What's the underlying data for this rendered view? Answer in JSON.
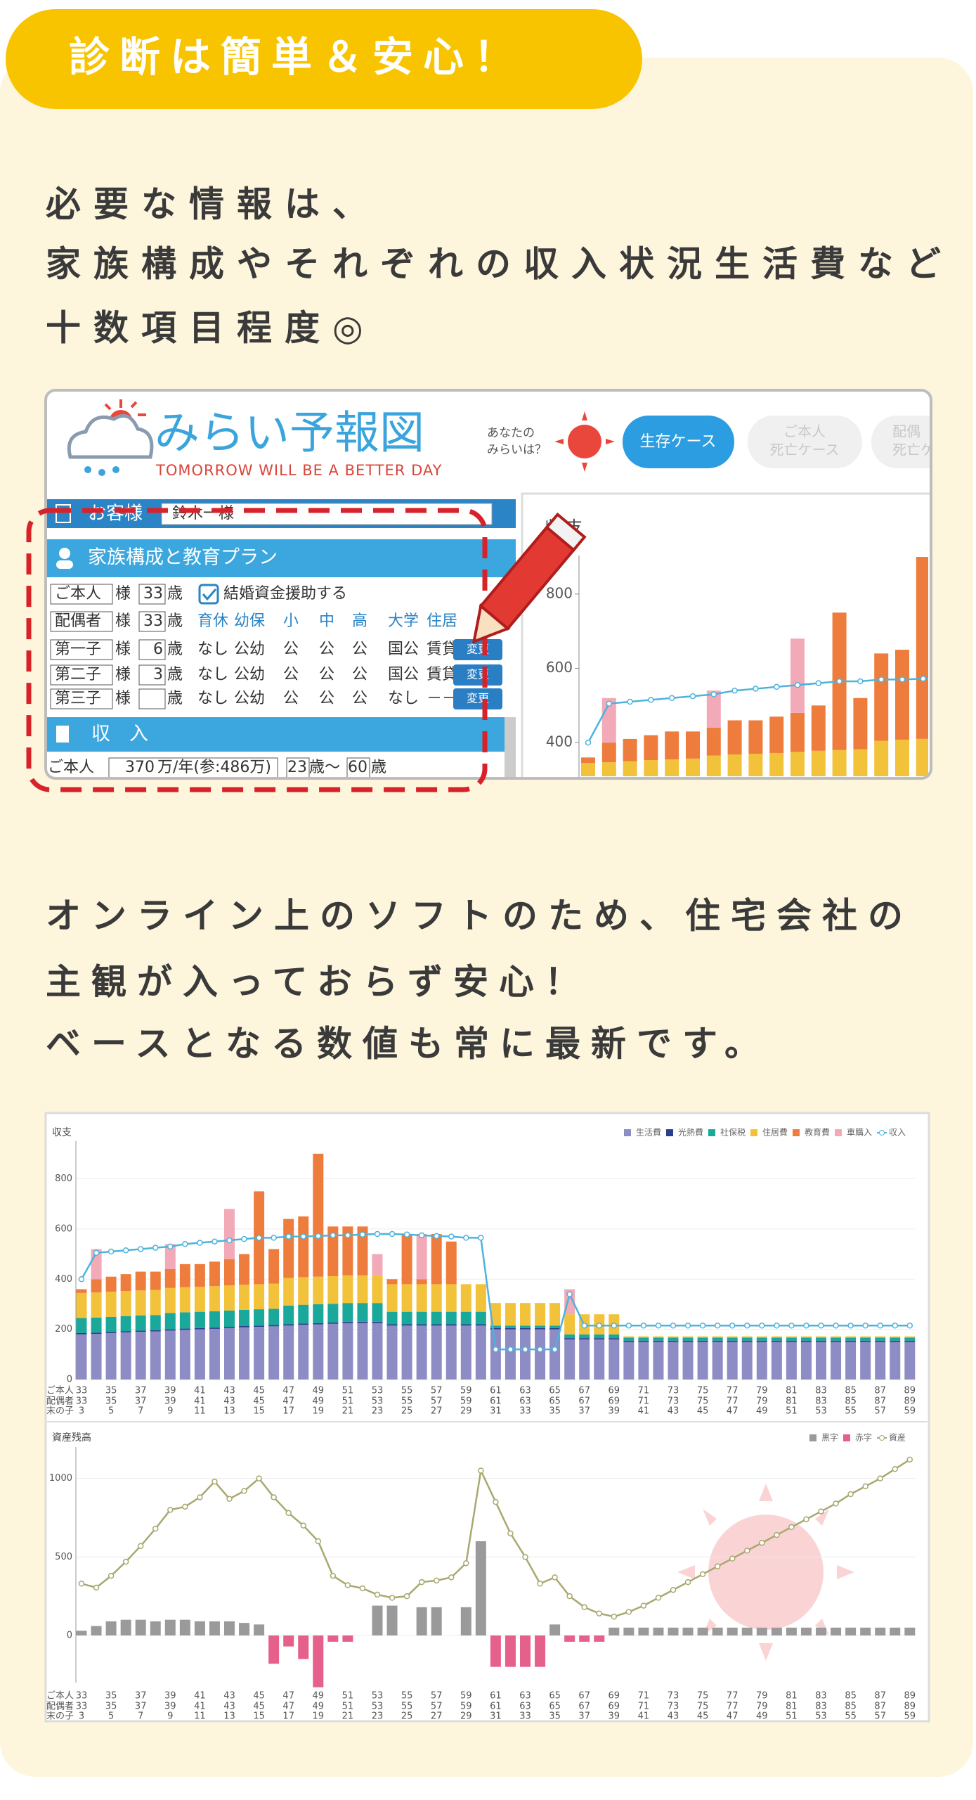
{
  "header": {
    "title": "診断は簡単＆安心！"
  },
  "paragraphs": [
    [
      "必要な情報は、",
      "家族構成やそれぞれの収入状況生活費など",
      "十数項目程度◎"
    ],
    [
      "オンライン上のソフトのため、住宅会社の",
      "主観が入っておらず安心！",
      "ベースとなる数値も常に最新です。"
    ]
  ],
  "app": {
    "logo": "みらい予報図",
    "tagline": "TOMORROW WILL BE A BETTER DAY",
    "prompt": [
      "あなたの",
      "みらいは？"
    ],
    "tabs": [
      [
        "生存ケース"
      ],
      [
        "ご本人",
        "死亡ケース"
      ],
      [
        "配偶",
        "死亡ケ"
      ]
    ],
    "customer_label": "お客様",
    "customer_name": "鈴木一様",
    "family_header": "家族構成と教育プラン",
    "honorific": "様",
    "age_unit": "歳",
    "marriage_support": "結婚資金援助する",
    "stage_headings": [
      "育休",
      "幼保",
      "小",
      "中",
      "高",
      "大学",
      "住居"
    ],
    "family": [
      {
        "name": "ご本人",
        "age": 33
      },
      {
        "name": "配偶者",
        "age": 33
      },
      {
        "name": "第一子",
        "age": 6,
        "plan": [
          "なし",
          "公幼",
          "公",
          "公",
          "公",
          "国公",
          "賃貸"
        ]
      },
      {
        "name": "第二子",
        "age": 3,
        "plan": [
          "なし",
          "公幼",
          "公",
          "公",
          "公",
          "国公",
          "賃貸"
        ]
      },
      {
        "name": "第三子",
        "age": null,
        "plan": [
          "なし",
          "公幼",
          "公",
          "公",
          "公",
          "なし",
          "－－"
        ]
      }
    ],
    "change_button": "変更",
    "income_header": "収　入",
    "income_row": {
      "name": "ご本人",
      "amount": 370,
      "unit": "万/年(参:486万)",
      "from": 23,
      "range_sep": "歳〜",
      "to": 60,
      "age_unit": "歳"
    }
  },
  "chart_data": [
    {
      "type": "bar",
      "stacked": true,
      "title": "収支",
      "ylim": [
        300,
        900
      ],
      "yticks": [
        400,
        600,
        800
      ]
    },
    {
      "type": "bar",
      "stacked": true,
      "title": "収支",
      "ylim": [
        0,
        950
      ],
      "yticks": [
        0,
        200,
        400,
        600,
        800
      ],
      "grid": true,
      "age_rows": [
        {
          "name": "ご本人",
          "labels": [
            33,
            35,
            37,
            39,
            41,
            43,
            45,
            47,
            49,
            51,
            53,
            55,
            57,
            59,
            61,
            63,
            65,
            67,
            69,
            71,
            73,
            75,
            77,
            79,
            81,
            83,
            85,
            87,
            89
          ]
        },
        {
          "name": "配偶者",
          "labels": [
            33,
            35,
            37,
            39,
            41,
            43,
            45,
            47,
            49,
            51,
            53,
            55,
            57,
            59,
            61,
            63,
            65,
            67,
            69,
            71,
            73,
            75,
            77,
            79,
            81,
            83,
            85,
            87,
            89
          ]
        },
        {
          "name": "末の子",
          "labels": [
            3,
            5,
            7,
            9,
            11,
            13,
            15,
            17,
            19,
            21,
            23,
            25,
            27,
            29,
            31,
            33,
            35,
            37,
            39,
            41,
            43,
            45,
            47,
            49,
            51,
            53,
            55,
            57,
            59
          ]
        }
      ],
      "series": [
        {
          "name": "生活費",
          "color": "#8e8cc4",
          "values": [
            180,
            182,
            185,
            188,
            190,
            192,
            195,
            198,
            200,
            202,
            205,
            208,
            210,
            212,
            215,
            218,
            220,
            222,
            225,
            225,
            225,
            215,
            215,
            215,
            215,
            215,
            215,
            215,
            200,
            200,
            200,
            200,
            200,
            160,
            160,
            160,
            160,
            150,
            150,
            150,
            150,
            150,
            150,
            150,
            150,
            150,
            150,
            150,
            150,
            150,
            150,
            150,
            150,
            150,
            150,
            150,
            150
          ]
        },
        {
          "name": "光熱費",
          "color": "#2b3f8f",
          "values": [
            5,
            5,
            5,
            5,
            5,
            5,
            5,
            5,
            5,
            5,
            5,
            5,
            5,
            5,
            5,
            5,
            5,
            5,
            5,
            5,
            5,
            5,
            5,
            5,
            5,
            5,
            5,
            5,
            5,
            5,
            5,
            5,
            5,
            5,
            5,
            5,
            5,
            5,
            5,
            5,
            5,
            5,
            5,
            5,
            5,
            5,
            5,
            5,
            5,
            5,
            5,
            5,
            5,
            5,
            5,
            5,
            5
          ]
        },
        {
          "name": "社保税",
          "color": "#1aa89a",
          "values": [
            60,
            60,
            60,
            60,
            60,
            60,
            65,
            65,
            65,
            65,
            65,
            65,
            65,
            65,
            75,
            75,
            75,
            75,
            75,
            75,
            75,
            50,
            50,
            50,
            50,
            50,
            50,
            50,
            10,
            10,
            10,
            10,
            10,
            15,
            15,
            15,
            15,
            12,
            12,
            12,
            12,
            12,
            12,
            12,
            12,
            12,
            12,
            12,
            12,
            12,
            12,
            12,
            12,
            12,
            12,
            12,
            12
          ]
        },
        {
          "name": "住居費",
          "color": "#f2c23a",
          "values": [
            100,
            100,
            100,
            100,
            100,
            100,
            100,
            100,
            100,
            100,
            100,
            100,
            100,
            100,
            110,
            110,
            110,
            110,
            110,
            110,
            110,
            110,
            110,
            110,
            110,
            110,
            110,
            110,
            90,
            90,
            90,
            90,
            90,
            80,
            80,
            80,
            80,
            5,
            5,
            5,
            5,
            5,
            5,
            5,
            5,
            5,
            5,
            5,
            5,
            5,
            5,
            5,
            5,
            5,
            5,
            5,
            5
          ]
        },
        {
          "name": "教育費",
          "color": "#ee7d3d",
          "values": [
            15,
            53,
            60,
            67,
            75,
            73,
            75,
            92,
            90,
            98,
            105,
            122,
            370,
            138,
            235,
            242,
            490,
            198,
            195,
            195,
            0,
            20,
            200,
            20,
            200,
            170,
            0,
            0,
            0,
            0,
            0,
            0,
            0,
            0,
            0,
            0,
            0,
            0,
            0,
            0,
            0,
            0,
            0,
            0,
            0,
            0,
            0,
            0,
            0,
            0,
            0,
            0,
            0,
            0,
            0,
            0,
            0
          ]
        },
        {
          "name": "車購入",
          "color": "#f3aab8",
          "values": [
            0,
            120,
            0,
            0,
            0,
            0,
            100,
            0,
            0,
            0,
            200,
            0,
            0,
            0,
            0,
            0,
            0,
            0,
            0,
            0,
            85,
            0,
            0,
            180,
            0,
            0,
            0,
            0,
            0,
            0,
            0,
            0,
            0,
            100,
            0,
            0,
            0,
            0,
            0,
            0,
            0,
            0,
            0,
            0,
            0,
            0,
            0,
            0,
            0,
            0,
            0,
            0,
            0,
            0,
            0,
            0,
            0
          ]
        },
        {
          "name": "収入",
          "type": "line",
          "color": "#4db3dc",
          "values": [
            400,
            505,
            510,
            515,
            520,
            525,
            530,
            540,
            545,
            550,
            555,
            560,
            565,
            565,
            570,
            570,
            572,
            575,
            575,
            578,
            580,
            580,
            578,
            575,
            572,
            570,
            565,
            565,
            120,
            120,
            120,
            120,
            120,
            340,
            215,
            215,
            215,
            215,
            215,
            215,
            215,
            215,
            215,
            215,
            215,
            215,
            215,
            215,
            215,
            215,
            215,
            215,
            215,
            215,
            215,
            215,
            215
          ]
        }
      ]
    },
    {
      "type": "bar",
      "title": "資産残高",
      "ylim": [
        -300,
        1200
      ],
      "yticks": [
        0,
        500,
        1000
      ],
      "grid": true,
      "series": [
        {
          "name": "黒字",
          "color": "#9a9a9a",
          "values": [
            30,
            60,
            90,
            100,
            100,
            90,
            100,
            100,
            90,
            90,
            90,
            80,
            70,
            null,
            null,
            null,
            null,
            null,
            null,
            0,
            190,
            190,
            0,
            180,
            180,
            0,
            180,
            600,
            null,
            null,
            null,
            null,
            70,
            null,
            null,
            null,
            50,
            50,
            50,
            50,
            50,
            50,
            50,
            50,
            50,
            50,
            50,
            50,
            50,
            50,
            50,
            50,
            50,
            50,
            50,
            50,
            50
          ]
        },
        {
          "name": "赤字",
          "color": "#e5608a",
          "values": [
            null,
            null,
            null,
            null,
            null,
            null,
            null,
            null,
            null,
            null,
            null,
            null,
            null,
            -180,
            -70,
            -150,
            -330,
            -40,
            -40,
            null,
            null,
            null,
            null,
            null,
            null,
            null,
            null,
            null,
            -200,
            -200,
            -200,
            -200,
            null,
            -40,
            -40,
            -40,
            null,
            null,
            null,
            null,
            null,
            null,
            null,
            null,
            null,
            null,
            null,
            null,
            null,
            null,
            null,
            null,
            null,
            null,
            null,
            null,
            null
          ]
        },
        {
          "name": "資産",
          "type": "line",
          "color": "#a8a870",
          "values": [
            330,
            305,
            380,
            470,
            570,
            680,
            800,
            820,
            880,
            980,
            870,
            920,
            1000,
            880,
            780,
            700,
            600,
            380,
            320,
            300,
            260,
            240,
            250,
            340,
            350,
            370,
            460,
            1050,
            850,
            650,
            500,
            330,
            370,
            250,
            180,
            140,
            120,
            150,
            190,
            240,
            290,
            340,
            390,
            440,
            490,
            540,
            590,
            640,
            690,
            740,
            790,
            840,
            900,
            950,
            1000,
            1060,
            1120
          ]
        }
      ]
    }
  ]
}
